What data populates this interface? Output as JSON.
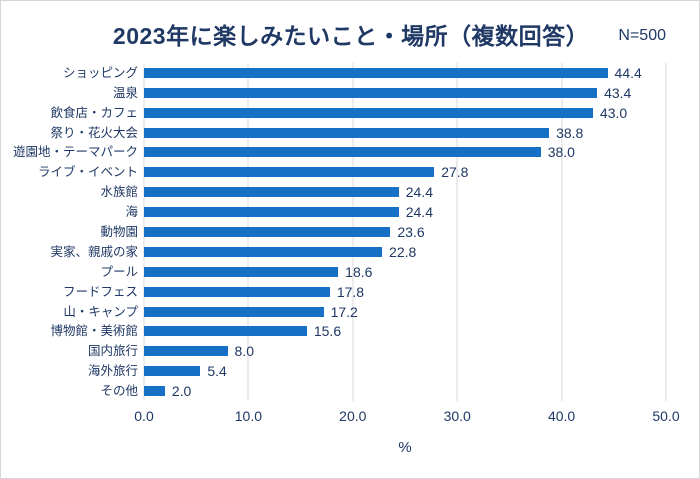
{
  "header": {
    "title": "2023年に楽しみたいこと・場所（複数回答）",
    "sample_size": "N=500"
  },
  "chart_data": {
    "type": "bar",
    "orientation": "horizontal",
    "title": "2023年に楽しみたいこと・場所（複数回答）",
    "sample_size": "N=500",
    "categories": [
      "ショッピング",
      "温泉",
      "飲食店・カフェ",
      "祭り・花火大会",
      "遊園地・テーマパーク",
      "ライブ・イベント",
      "水族館",
      "海",
      "動物園",
      "実家、親戚の家",
      "プール",
      "フードフェス",
      "山・キャンプ",
      "博物館・美術館",
      "国内旅行",
      "海外旅行",
      "その他"
    ],
    "values": [
      44.4,
      43.4,
      43.0,
      38.8,
      38.0,
      27.8,
      24.4,
      24.4,
      23.6,
      22.8,
      18.6,
      17.8,
      17.2,
      15.6,
      8.0,
      5.4,
      2.0
    ],
    "xlabel": "%",
    "ylabel": "",
    "xlim": [
      0,
      50
    ],
    "x_ticks": [
      "0.0",
      "10.0",
      "20.0",
      "30.0",
      "40.0",
      "50.0"
    ],
    "grid": true,
    "legend": "none",
    "bar_color": "#1570C6",
    "label_color": "#1F3864",
    "gridline_color": "#D9D9D9"
  }
}
